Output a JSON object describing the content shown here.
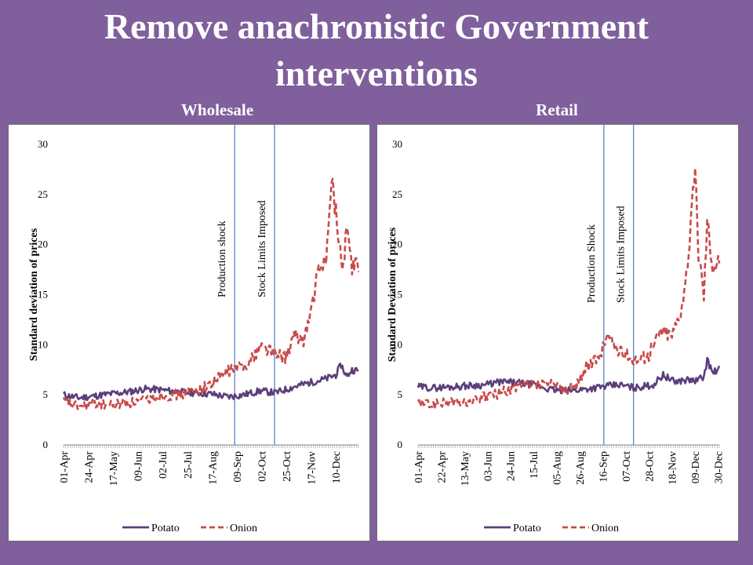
{
  "slide": {
    "title_line1": "Remove anachronistic Government",
    "title_line2": "interventions",
    "background": "#7f5f9c"
  },
  "chart_data": [
    {
      "panel_title": "Wholesale",
      "type": "line",
      "ylabel": "Standard deviation of prices",
      "ylim": [
        0,
        30
      ],
      "yticks": [
        0,
        5,
        10,
        15,
        20,
        25,
        30
      ],
      "date_range": [
        "01-Apr",
        "31-Dec"
      ],
      "xticks": [
        "01-Apr",
        "24-Apr",
        "17-May",
        "09-Jun",
        "02-Jul",
        "25-Jul",
        "17-Aug",
        "09-Sep",
        "02-Oct",
        "25-Oct",
        "17-Nov",
        "10-Dec"
      ],
      "legend": "bottom",
      "grid": false,
      "annotations": [
        {
          "label": "Production shock",
          "date": "07-Sep"
        },
        {
          "label": "Stock Limits  Imposed",
          "date": "14-Oct"
        }
      ],
      "series": [
        {
          "name": "Potato",
          "color": "#5b3f7a",
          "style": "solid",
          "x": [
            "01-Apr",
            "15-Apr",
            "01-May",
            "15-May",
            "01-Jun",
            "15-Jun",
            "01-Jul",
            "15-Jul",
            "01-Aug",
            "15-Aug",
            "01-Sep",
            "15-Sep",
            "01-Oct",
            "15-Oct",
            "01-Nov",
            "15-Nov",
            "01-Dec",
            "10-Dec",
            "15-Dec",
            "20-Dec",
            "25-Dec",
            "31-Dec"
          ],
          "values": [
            5.0,
            4.7,
            4.9,
            5.1,
            5.3,
            5.6,
            5.5,
            5.3,
            5.2,
            5.1,
            4.8,
            5.0,
            5.4,
            5.2,
            5.8,
            6.2,
            6.6,
            7.0,
            8.0,
            6.8,
            7.5,
            7.4
          ]
        },
        {
          "name": "Onion",
          "color": "#c94a4a",
          "style": "dashed",
          "x": [
            "01-Apr",
            "15-Apr",
            "01-May",
            "15-May",
            "01-Jun",
            "15-Jun",
            "01-Jul",
            "15-Jul",
            "01-Aug",
            "15-Aug",
            "01-Sep",
            "15-Sep",
            "24-Sep",
            "01-Oct",
            "10-Oct",
            "15-Oct",
            "25-Oct",
            "01-Nov",
            "10-Nov",
            "17-Nov",
            "22-Nov",
            "01-Dec",
            "07-Dec",
            "12-Dec",
            "17-Dec",
            "20-Dec",
            "25-Dec",
            "31-Dec"
          ],
          "values": [
            4.3,
            3.8,
            4.1,
            4.0,
            4.2,
            4.5,
            4.9,
            5.0,
            5.3,
            6.0,
            7.4,
            7.9,
            8.7,
            9.9,
            9.5,
            8.9,
            8.8,
            10.8,
            10.5,
            13.2,
            16.5,
            19.0,
            26.5,
            21.0,
            17.5,
            22.0,
            17.5,
            18.2
          ]
        }
      ]
    },
    {
      "panel_title": "Retail",
      "type": "line",
      "ylabel": "Standard Deviation of prices",
      "ylim": [
        0,
        30
      ],
      "yticks": [
        0,
        5,
        10,
        15,
        20,
        25,
        30
      ],
      "date_range": [
        "01-Apr",
        "31-Dec"
      ],
      "xticks": [
        "01-Apr",
        "22-Apr",
        "13-May",
        "03-Jun",
        "24-Jun",
        "15-Jul",
        "05-Aug",
        "26-Aug",
        "16-Sep",
        "07-Oct",
        "28-Oct",
        "18-Nov",
        "09-Dec",
        "30-Dec"
      ],
      "legend": "bottom",
      "grid": false,
      "annotations": [
        {
          "label": "Production Shock",
          "date": "17-Sep"
        },
        {
          "label": "Stock Limits  Imposed",
          "date": "14-Oct"
        }
      ],
      "series": [
        {
          "name": "Potato",
          "color": "#5b3f7a",
          "style": "solid",
          "x": [
            "01-Apr",
            "15-Apr",
            "01-May",
            "15-May",
            "01-Jun",
            "15-Jun",
            "01-Jul",
            "15-Jul",
            "01-Aug",
            "15-Aug",
            "01-Sep",
            "15-Sep",
            "01-Oct",
            "15-Oct",
            "01-Nov",
            "10-Nov",
            "20-Nov",
            "01-Dec",
            "10-Dec",
            "17-Dec",
            "20-Dec",
            "25-Dec",
            "31-Dec"
          ],
          "values": [
            5.8,
            5.7,
            5.8,
            5.9,
            6.0,
            6.3,
            6.2,
            6.0,
            5.5,
            5.4,
            5.6,
            5.8,
            6.0,
            5.7,
            6.0,
            7.0,
            6.3,
            6.5,
            6.4,
            6.8,
            8.5,
            7.2,
            7.6
          ]
        },
        {
          "name": "Onion",
          "color": "#c94a4a",
          "style": "dashed",
          "x": [
            "01-Apr",
            "15-Apr",
            "01-May",
            "15-May",
            "01-Jun",
            "15-Jun",
            "01-Jul",
            "15-Jul",
            "01-Aug",
            "15-Aug",
            "22-Aug",
            "01-Sep",
            "12-Sep",
            "20-Sep",
            "01-Oct",
            "10-Oct",
            "20-Oct",
            "28-Oct",
            "08-Nov",
            "18-Nov",
            "26-Nov",
            "01-Dec",
            "05-Dec",
            "09-Dec",
            "12-Dec",
            "17-Dec",
            "20-Dec",
            "25-Dec",
            "31-Dec"
          ],
          "values": [
            4.2,
            4.0,
            4.3,
            4.2,
            4.8,
            5.2,
            5.8,
            6.0,
            6.0,
            5.5,
            5.8,
            7.8,
            8.5,
            11.0,
            9.3,
            8.8,
            8.5,
            9.0,
            11.5,
            11.0,
            13.5,
            16.5,
            22.0,
            27.5,
            19.5,
            15.0,
            22.5,
            18.0,
            18.5
          ]
        }
      ]
    }
  ]
}
